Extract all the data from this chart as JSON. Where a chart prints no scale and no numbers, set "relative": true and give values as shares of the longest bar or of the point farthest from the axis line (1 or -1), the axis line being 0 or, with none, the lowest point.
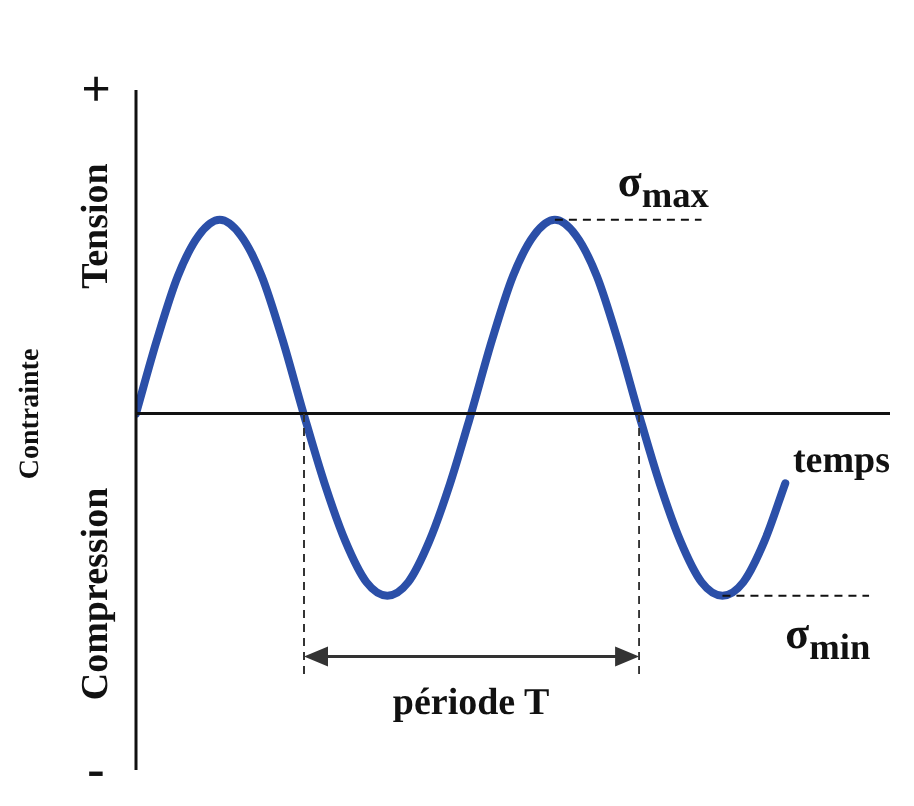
{
  "chart_data": {
    "type": "line",
    "relative": true,
    "categories": [
      null,
      null,
      null,
      null,
      null,
      null,
      null,
      null,
      null,
      null,
      null,
      null,
      null,
      null,
      null,
      null,
      null,
      null,
      null,
      null,
      null,
      null,
      null,
      null,
      null,
      null,
      null,
      null,
      null,
      null,
      null,
      null
    ],
    "ylabel": "Contrainte",
    "xlabel": "temps",
    "legend": false,
    "marker": "none",
    "line_style": "solid",
    "series": [
      {
        "color": "#2b4fa8",
        "values": [
          0,
          0.38,
          0.71,
          0.92,
          1,
          0.92,
          0.71,
          0.38,
          0,
          -0.36,
          -0.66,
          -0.87,
          -0.94,
          -0.87,
          -0.66,
          -0.36,
          0,
          0.38,
          0.71,
          0.92,
          1,
          0.92,
          0.71,
          0.38,
          0,
          -0.36,
          -0.66,
          -0.87,
          -0.94,
          -0.87,
          -0.66,
          -0.36
        ]
      }
    ],
    "ref_lines": [
      {
        "axis": "y",
        "value": 1,
        "label": "σ$_{max}$",
        "line_style": "dashed"
      },
      {
        "axis": "y",
        "value": -0.94,
        "label": "σ$_{min}$",
        "line_style": "dashed"
      }
    ],
    "annotations": [
      "+",
      "Tension",
      "Compression",
      "-",
      "période T"
    ]
  }
}
